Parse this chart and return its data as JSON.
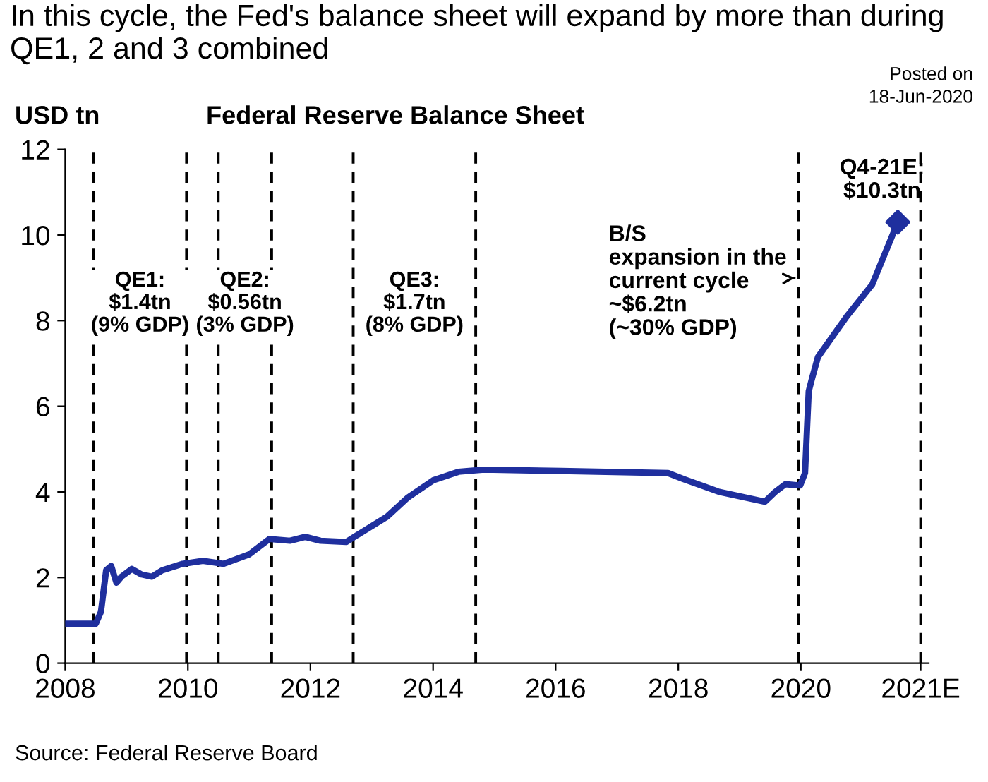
{
  "chart_data": {
    "type": "line",
    "title": "In this cycle, the Fed's balance sheet will expand by more than during QE1, 2 and 3 combined",
    "subtitle": "Federal Reserve Balance Sheet",
    "ylabel": "USD tn",
    "x": [
      "2008-01",
      "2008-07",
      "2008-08",
      "2008-09",
      "2008-10",
      "2008-11",
      "2008-12",
      "2009-02",
      "2009-04",
      "2009-06",
      "2009-08",
      "2009-12",
      "2010-04",
      "2010-08",
      "2011-01",
      "2011-05",
      "2011-09",
      "2011-12",
      "2012-03",
      "2012-08",
      "2012-10",
      "2013-04",
      "2013-08",
      "2014-01",
      "2014-06",
      "2014-11",
      "2016-02",
      "2017-11",
      "2018-02",
      "2018-09",
      "2019-06",
      "2019-08",
      "2019-10",
      "2019-12-28",
      "2020-01-26",
      "2020-02-17",
      "2020-03-07",
      "2020-04-12",
      "2020-10",
      "2021-03",
      "2021-08"
    ],
    "series": [
      {
        "color": "#1f2f9e",
        "values": [
          0.92,
          0.92,
          1.2,
          2.17,
          2.27,
          1.88,
          2.02,
          2.2,
          2.07,
          2.02,
          2.17,
          2.32,
          2.39,
          2.32,
          2.54,
          2.9,
          2.86,
          2.95,
          2.86,
          2.83,
          2.98,
          3.42,
          3.86,
          4.27,
          4.47,
          4.52,
          4.49,
          4.44,
          4.3,
          4.0,
          3.77,
          4.0,
          4.18,
          4.15,
          4.44,
          6.35,
          6.64,
          7.15,
          8.1,
          8.84,
          10.3
        ]
      },
      {
        "type": "scatter",
        "marker": "diamond",
        "color": "#1f2f9e",
        "x": [
          "2021-08"
        ],
        "values": [
          10.3
        ]
      }
    ],
    "xlim": [
      "2008",
      "2022-02"
    ],
    "xticks": [
      "2008",
      "2010",
      "2012",
      "2014",
      "2016",
      "2018",
      "2020",
      {
        "value": "2021-12-15",
        "label": "2021E"
      }
    ],
    "ylim": [
      0,
      12
    ],
    "yticks": [
      0,
      2,
      4,
      6,
      8,
      10,
      12
    ],
    "grid": false,
    "legend": false,
    "marker": "none",
    "line_style": "solid",
    "ref_lines": [
      {
        "axis": "x",
        "value": "2008-06-18",
        "line_style": "dashed",
        "color": "#000000"
      },
      {
        "axis": "x",
        "value": "2009-12-24",
        "line_style": "dashed",
        "color": "#000000"
      },
      {
        "axis": "x",
        "value": "2010-07-01",
        "line_style": "dashed",
        "color": "#000000"
      },
      {
        "axis": "x",
        "value": "2011-05-15",
        "line_style": "dashed",
        "color": "#000000"
      },
      {
        "axis": "x",
        "value": "2012-09-12",
        "line_style": "dashed",
        "color": "#000000"
      },
      {
        "axis": "x",
        "value": "2014-09-12",
        "line_style": "dashed",
        "color": "#000000"
      },
      {
        "axis": "x",
        "value": "2019-12-20",
        "line_style": "dashed",
        "color": "#000000"
      },
      {
        "axis": "x",
        "value": "2021-12-15",
        "line_style": "dashed",
        "color": "#000000"
      }
    ],
    "annotations": [
      "QE1:\n$1.4tn\n(9% GDP)",
      "QE2:\n$0.56tn\n(3% GDP)",
      "QE3:\n$1.7tn\n(8% GDP)",
      {
        "text": "B/S\nexpansion in the\ncurrent cycle\n~$6.2tn\n(~30% GDP)",
        "x": "2019-12-20",
        "y": 9.0
      },
      {
        "text": "Q4-21E:\n$10.3tn",
        "x": "2021-08",
        "y": 10.3
      },
      "Posted on\n18-Jun-2020",
      "Source: Federal Reserve Board"
    ]
  }
}
